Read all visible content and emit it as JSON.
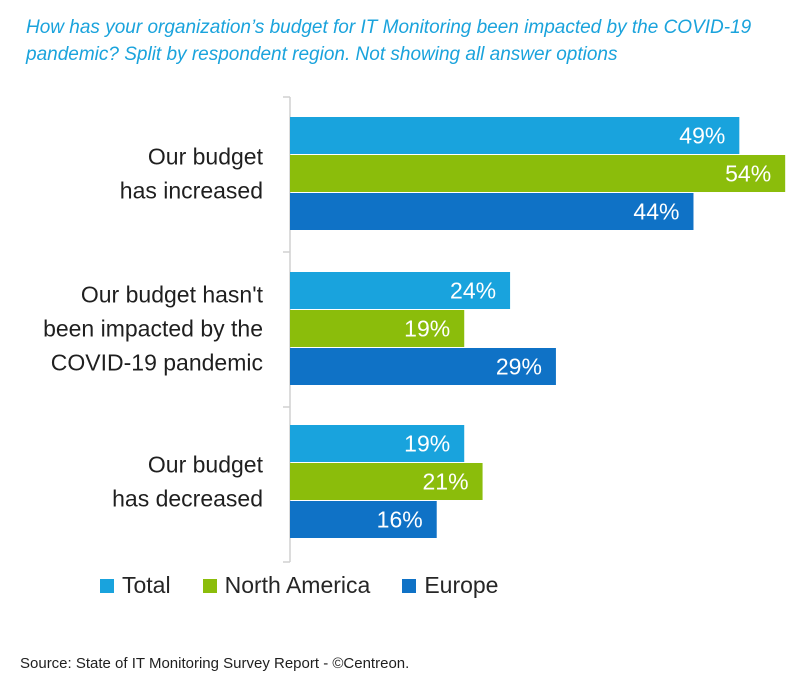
{
  "chart_data": {
    "type": "bar",
    "orientation": "horizontal",
    "title": "How has your organization’s budget for IT Monitoring been impacted by the COVID-19 pandemic? Split by respondent region. Not showing all answer options",
    "categories": [
      [
        "Our budget",
        "has increased"
      ],
      [
        "Our budget hasn't",
        "been impacted by the",
        "COVID-19 pandemic"
      ],
      [
        "Our budget",
        "has decreased"
      ]
    ],
    "series": [
      {
        "name": "Total",
        "color": "#19a3dd",
        "values": [
          49,
          24,
          19
        ]
      },
      {
        "name": "North America",
        "color": "#8bbd0b",
        "values": [
          54,
          19,
          21
        ]
      },
      {
        "name": "Europe",
        "color": "#0f72c6",
        "values": [
          44,
          29,
          16
        ]
      }
    ],
    "value_suffix": "%",
    "xlim": [
      0,
      60
    ],
    "grid": false,
    "legend_position": "bottom"
  },
  "source": "Source: State of IT Monitoring Survey Report - ©Centreon."
}
